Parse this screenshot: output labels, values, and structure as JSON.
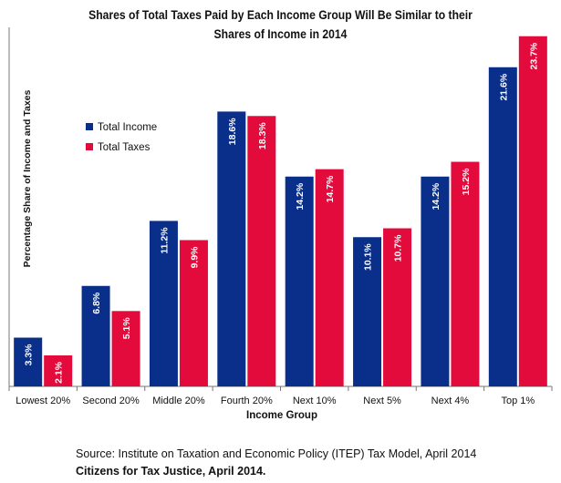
{
  "chart_data": {
    "type": "bar",
    "title_line1": "Shares of Total Taxes Paid by Each Income Group Will Be Similar to their",
    "title_line2": "Shares of Income in 2014",
    "xlabel": "Income Group",
    "ylabel": "Percentage Share of Income and Taxes",
    "categories": [
      "Lowest 20%",
      "Second 20%",
      "Middle 20%",
      "Fourth 20%",
      "Next 10%",
      "Next 5%",
      "Next 4%",
      "Top 1%"
    ],
    "series": [
      {
        "name": "Total Income",
        "color": "#0a2f8a",
        "values": [
          3.3,
          6.8,
          11.2,
          18.6,
          14.2,
          10.1,
          14.2,
          21.6
        ],
        "labels": [
          "3.3%",
          "6.8%",
          "11.2%",
          "18.6%",
          "14.2%",
          "10.1%",
          "14.2%",
          "21.6%"
        ]
      },
      {
        "name": "Total Taxes",
        "color": "#e30a3c",
        "values": [
          2.1,
          5.1,
          9.9,
          18.3,
          14.7,
          10.7,
          15.2,
          23.7
        ],
        "labels": [
          "2.1%",
          "5.1%",
          "9.9%",
          "18.3%",
          "14.7%",
          "10.7%",
          "15.2%",
          "23.7%"
        ]
      }
    ],
    "ylim": [
      0,
      24.3
    ],
    "legend_position": "top-left",
    "grid": false
  },
  "source_text": "Source: Institute on Taxation and Economic Policy (ITEP) Tax Model, April 2014",
  "citation_text": "Citizens for Tax Justice, April 2014."
}
